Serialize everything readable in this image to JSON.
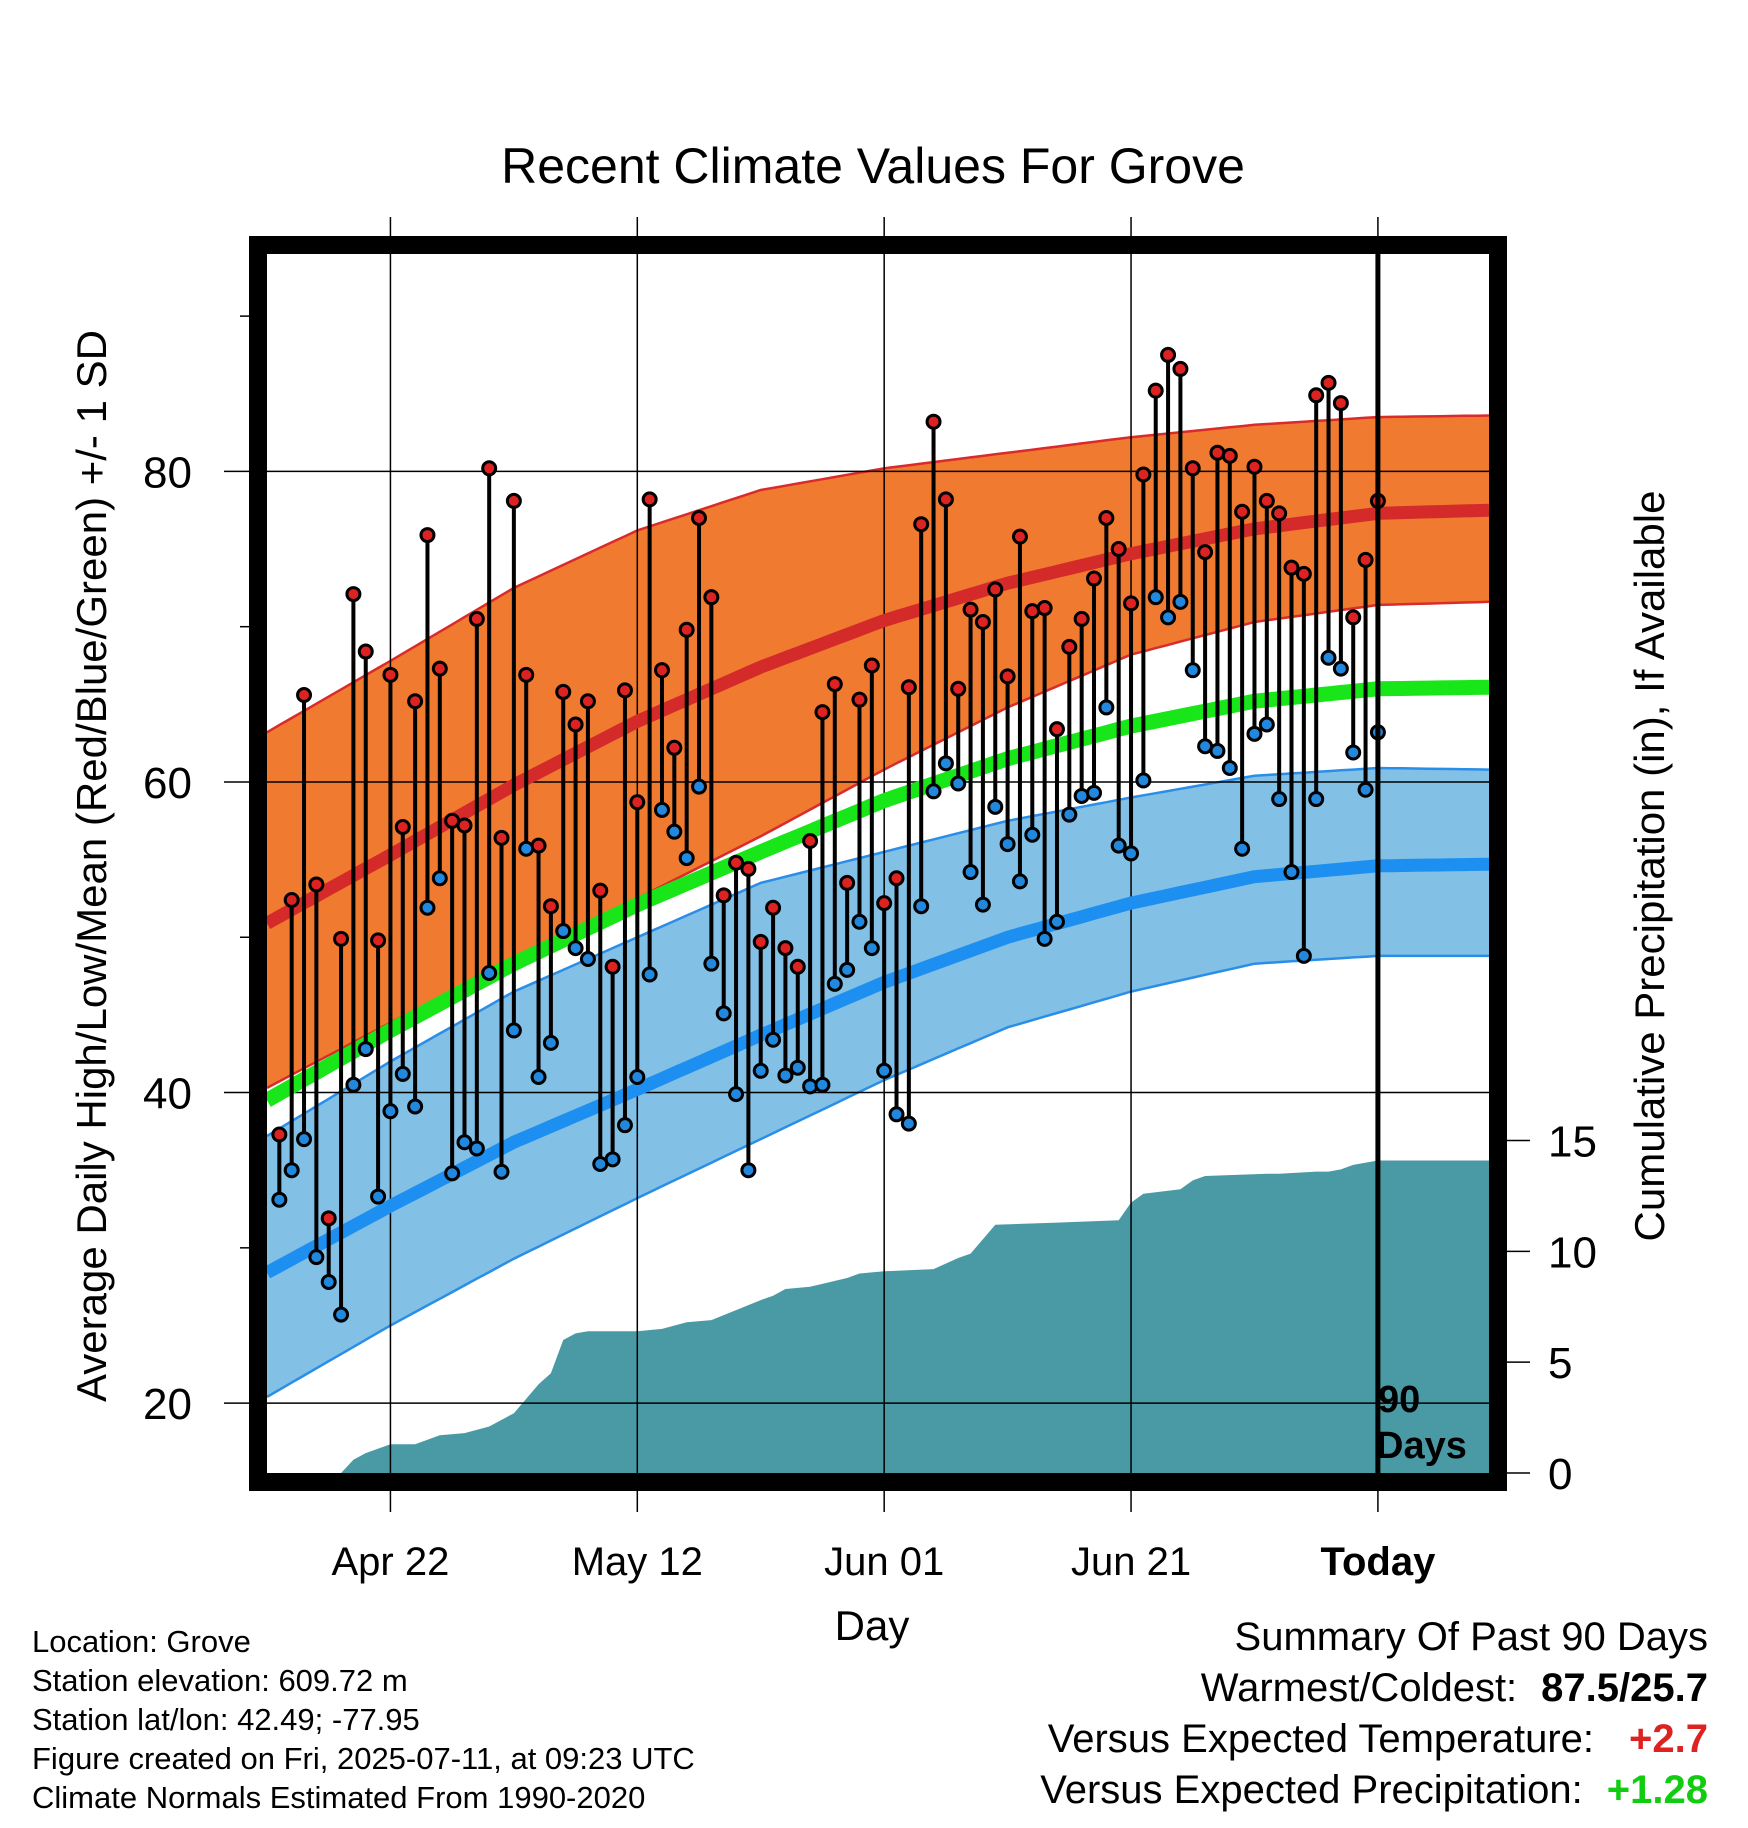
{
  "chart_data": {
    "type": "line",
    "title": "Recent Climate Values For Grove",
    "xlabel": "Day",
    "ylabel": "Average Daily High/Low/Mean (Red/Blue/Green) +/- 1 SD",
    "y2label": "Cumulative Precipitation (in), If Available",
    "x_tick_labels": [
      "Apr 22",
      "May 12",
      "Jun 01",
      "Jun 21",
      "Today"
    ],
    "x_tick_days": [
      -80,
      -60,
      -40,
      -20,
      0
    ],
    "x_range": [
      -90,
      9
    ],
    "ylim": [
      15.5,
      94
    ],
    "y_ticks": [
      20,
      40,
      60,
      80
    ],
    "y2_ticks": [
      0,
      5,
      10,
      15
    ],
    "y2_range": [
      0,
      55
    ],
    "today_marker_label": [
      "90",
      "Days"
    ],
    "normals": {
      "day": [
        -90,
        -80,
        -70,
        -60,
        -50,
        -40,
        -30,
        -20,
        -10,
        0,
        9
      ],
      "high_mean": [
        50.9,
        55.3,
        59.8,
        63.9,
        67.4,
        70.4,
        72.8,
        74.7,
        76.3,
        77.3,
        77.5
      ],
      "high_plus_sd": [
        63.2,
        67.8,
        72.5,
        76.2,
        78.8,
        80.2,
        81.2,
        82.2,
        83.0,
        83.5,
        83.6
      ],
      "high_minus_sd": [
        40.3,
        44.5,
        48.5,
        52.5,
        56.5,
        60.8,
        64.8,
        68.2,
        70.3,
        71.4,
        71.6
      ],
      "low_mean": [
        28.4,
        32.7,
        36.8,
        40.2,
        43.7,
        47.1,
        50.0,
        52.2,
        53.9,
        54.6,
        54.7
      ],
      "low_plus_sd": [
        37.2,
        42.0,
        46.5,
        50.0,
        53.5,
        55.5,
        57.5,
        59.0,
        60.4,
        60.9,
        60.8
      ],
      "low_minus_sd": [
        20.4,
        25.0,
        29.3,
        33.2,
        37.0,
        40.8,
        44.2,
        46.5,
        48.3,
        48.8,
        48.8
      ],
      "mean": [
        39.5,
        44.0,
        48.3,
        52.1,
        55.5,
        58.8,
        61.5,
        63.6,
        65.2,
        66.0,
        66.1
      ]
    },
    "series": [
      {
        "name": "High",
        "color": "#dd2222",
        "values": [
          37.3,
          52.4,
          65.6,
          53.4,
          31.9,
          49.9,
          72.1,
          68.4,
          49.8,
          66.9,
          57.1,
          65.2,
          75.9,
          67.3,
          57.5,
          57.2,
          70.5,
          80.2,
          56.4,
          78.1,
          66.9,
          55.9,
          52.0,
          65.8,
          63.7,
          65.2,
          53.0,
          48.1,
          65.9,
          58.7,
          78.2,
          67.2,
          62.2,
          69.8,
          77.0,
          71.9,
          52.7,
          54.8,
          54.4,
          49.7,
          51.9,
          49.3,
          48.1,
          56.2,
          64.5,
          66.3,
          53.5,
          65.3,
          67.5,
          52.2,
          53.8,
          66.1,
          76.6,
          83.2,
          78.2,
          66.0,
          71.1,
          70.3,
          72.4,
          66.8,
          75.8,
          71.0,
          71.2,
          63.4,
          68.7,
          70.5,
          73.1,
          77.0,
          75.0,
          71.5,
          79.8,
          85.2,
          87.5,
          86.6,
          80.2,
          74.8,
          81.2,
          81.0,
          77.4,
          80.3,
          78.1,
          77.3,
          73.8,
          73.4,
          84.9,
          85.7,
          84.4,
          70.6,
          74.3,
          78.1
        ]
      },
      {
        "name": "Low",
        "color": "#2288dd",
        "values": [
          33.1,
          35.0,
          37.0,
          29.4,
          27.8,
          25.7,
          40.5,
          42.8,
          33.3,
          38.8,
          41.2,
          39.1,
          51.9,
          53.8,
          34.8,
          36.8,
          36.4,
          47.7,
          34.9,
          44.0,
          55.7,
          41.0,
          43.2,
          50.4,
          49.3,
          48.6,
          35.4,
          35.7,
          37.9,
          41.0,
          47.6,
          58.2,
          56.8,
          55.1,
          59.7,
          48.3,
          45.1,
          39.9,
          35.0,
          41.4,
          43.4,
          41.1,
          41.6,
          40.4,
          40.5,
          47.0,
          47.9,
          51.0,
          49.3,
          41.4,
          38.6,
          38.0,
          52.0,
          59.4,
          61.2,
          59.9,
          54.2,
          52.1,
          58.4,
          56.0,
          53.6,
          56.6,
          49.9,
          51.0,
          57.9,
          59.1,
          59.3,
          64.8,
          55.9,
          55.4,
          60.1,
          71.9,
          70.6,
          71.6,
          67.2,
          62.3,
          62.0,
          60.9,
          55.7,
          63.1,
          63.7,
          58.9,
          54.2,
          48.8,
          58.9,
          68.0,
          67.3,
          61.9,
          59.5,
          63.2
        ]
      }
    ],
    "precip_cumulative": {
      "day": [
        -90,
        -84,
        -83,
        -82,
        -80,
        -78,
        -76,
        -74,
        -72,
        -70,
        -68,
        -67,
        -66,
        -65,
        -64,
        -60,
        -58,
        -56,
        -54,
        -50,
        -49,
        -48,
        -46,
        -43,
        -42,
        -40,
        -36,
        -34,
        -33,
        -31,
        -26,
        -21,
        -20,
        -19,
        -16,
        -15,
        -14,
        -9,
        -8,
        -5,
        -4,
        -3,
        -2,
        0,
        9
      ],
      "values": [
        0,
        0,
        0.6,
        0.9,
        1.3,
        1.3,
        1.7,
        1.8,
        2.1,
        2.7,
        4.0,
        4.5,
        6.0,
        6.3,
        6.4,
        6.4,
        6.5,
        6.8,
        6.9,
        7.8,
        8.0,
        8.3,
        8.4,
        8.8,
        9.0,
        9.1,
        9.2,
        9.7,
        9.9,
        11.2,
        11.3,
        11.4,
        12.2,
        12.6,
        12.8,
        13.2,
        13.4,
        13.5,
        13.5,
        13.6,
        13.6,
        13.7,
        13.9,
        14.1,
        14.1
      ]
    }
  },
  "footer": {
    "location": "Location: Grove",
    "elevation": "Station elevation: 609.72 m",
    "latlon": "Station lat/lon: 42.49; -77.95",
    "created": "Figure created on Fri, 2025-07-11, at 09:23 UTC",
    "normals_period": "Climate Normals Estimated From 1990-2020"
  },
  "summary": {
    "heading": "Summary Of Past 90 Days",
    "warm_cold_label": "Warmest/Coldest:",
    "warm_cold_value": "87.5/25.7",
    "temp_label": "Versus Expected Temperature:",
    "temp_value": "+2.7",
    "precip_label": "Versus Expected Precipitation:",
    "precip_value": "+1.28",
    "colors": {
      "temp": "#dd2222",
      "precip": "#11cc11"
    }
  }
}
